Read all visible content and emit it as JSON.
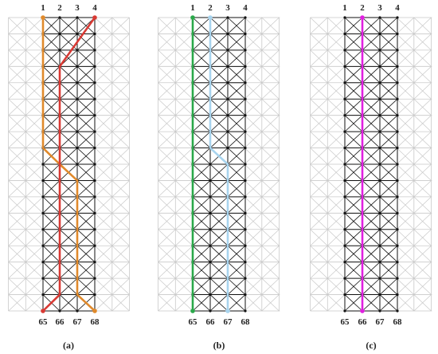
{
  "style": {
    "grid_color": "#111111",
    "faded_grid_color": "#c9c9c9",
    "node_color": "#111111"
  },
  "grid": {
    "columns": 4,
    "rows": 19,
    "top_labels": [
      "1",
      "2",
      "3",
      "4"
    ],
    "bottom_labels": [
      "65",
      "66",
      "67",
      "68"
    ]
  },
  "panels": [
    {
      "label": "(a)",
      "paths": [
        {
          "color": "#e08a2c",
          "points": [
            [
              0,
              0
            ],
            [
              0,
              8
            ],
            [
              1,
              9
            ],
            [
              2,
              10
            ],
            [
              2,
              17
            ],
            [
              3,
              18
            ]
          ]
        },
        {
          "color": "#d93a34",
          "points": [
            [
              3,
              0
            ],
            [
              1,
              3
            ],
            [
              1,
              17
            ],
            [
              0,
              18
            ]
          ]
        }
      ]
    },
    {
      "label": "(b)",
      "paths": [
        {
          "color": "#2aa84a",
          "points": [
            [
              0,
              0
            ],
            [
              0,
              18
            ]
          ]
        },
        {
          "color": "#a8d4ee",
          "points": [
            [
              1,
              0
            ],
            [
              1,
              8
            ],
            [
              2,
              9
            ],
            [
              2,
              18
            ]
          ]
        }
      ]
    },
    {
      "label": "(c)",
      "paths": [
        {
          "color": "#e020e0",
          "points": [
            [
              1,
              0
            ],
            [
              1,
              18
            ]
          ]
        }
      ]
    }
  ]
}
